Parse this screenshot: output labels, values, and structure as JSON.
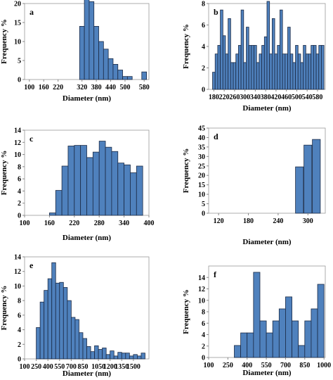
{
  "chart_data": [
    {
      "panel": "a",
      "type": "bar",
      "ylabel": "Frequency %",
      "xlabel": "Diameter (nm)",
      "ylim": [
        0,
        20
      ],
      "yticks": [
        "0",
        "5",
        "10",
        "15",
        "20"
      ],
      "xlim": [
        80,
        600
      ],
      "xticks": [
        "100",
        "160",
        "220",
        "320",
        "380",
        "440",
        "500",
        "580"
      ],
      "bar_width": 20,
      "centers": [
        320,
        340,
        360,
        380,
        400,
        420,
        440,
        460,
        480,
        500,
        520,
        580
      ],
      "values": [
        14,
        21,
        20.5,
        14,
        10,
        8,
        5.5,
        4,
        2.5,
        0.8,
        0.8,
        2
      ]
    },
    {
      "panel": "b",
      "type": "bar",
      "ylabel": "Frequency %",
      "xlabel": "Diameter (nm)",
      "ylim": [
        0,
        8
      ],
      "yticks": [
        "0",
        "2",
        "4",
        "6",
        "8"
      ],
      "xlim": [
        160,
        610
      ],
      "xticks": [
        "180",
        "220",
        "260",
        "300",
        "340",
        "380",
        "420",
        "460",
        "500",
        "540",
        "580"
      ],
      "bar_width": 10,
      "centers": [
        180,
        190,
        200,
        210,
        220,
        230,
        240,
        250,
        260,
        270,
        280,
        290,
        300,
        310,
        320,
        330,
        340,
        350,
        360,
        370,
        380,
        390,
        400,
        410,
        420,
        430,
        440,
        450,
        460,
        470,
        480,
        490,
        500,
        510,
        520,
        530,
        540,
        550,
        560,
        570,
        580,
        590,
        600
      ],
      "values": [
        1.6,
        3.3,
        4.1,
        7.4,
        5.0,
        3.3,
        6.6,
        2.5,
        2.5,
        3.3,
        4.1,
        7.4,
        2.5,
        5.8,
        4.1,
        4.1,
        4.1,
        2.5,
        3.3,
        4.1,
        4.9,
        8.2,
        3.3,
        6.6,
        3.3,
        4.1,
        7.4,
        3.3,
        3.3,
        5.8,
        3.3,
        2.5,
        4.1,
        3.3,
        2.5,
        4.1,
        3.3,
        3.3,
        4.1,
        4.1,
        3.3,
        4.1,
        4.1
      ]
    },
    {
      "panel": "c",
      "type": "bar",
      "ylabel": "Frequency %",
      "xlabel": "Diameter (nm)",
      "ylim": [
        0,
        14
      ],
      "yticks": [
        "0",
        "2",
        "4",
        "6",
        "8",
        "10",
        "12",
        "14"
      ],
      "xlim": [
        100,
        400
      ],
      "xticks": [
        "100",
        "160",
        "220",
        "280",
        "340",
        "400"
      ],
      "bar_width": 15,
      "centers": [
        167.5,
        182.5,
        197.5,
        212.5,
        227.5,
        242.5,
        257.5,
        272.5,
        287.5,
        302.5,
        317.5,
        332.5,
        347.5,
        362.5,
        377.5
      ],
      "values": [
        0.4,
        4.1,
        8.1,
        11.4,
        11.5,
        11.5,
        9.5,
        10.4,
        12.2,
        11.2,
        10.5,
        8.6,
        8.3,
        7.0,
        8.1
      ]
    },
    {
      "panel": "d",
      "type": "bar",
      "ylabel": "Frequency %",
      "xlabel": "Diameter (nm)",
      "ylim": [
        0,
        45
      ],
      "yticks": [
        "0",
        "5",
        "10",
        "15",
        "20",
        "25",
        "30",
        "35",
        "40",
        "45"
      ],
      "xlim": [
        100,
        335
      ],
      "xticks": [
        "120",
        "180",
        "240",
        "300"
      ],
      "bar_width": 16,
      "centers": [
        283,
        300,
        317
      ],
      "values": [
        24.5,
        36,
        39
      ]
    },
    {
      "panel": "e",
      "type": "bar",
      "ylabel": "Frequency %",
      "xlabel": "Diameter (nm)",
      "ylim": [
        0,
        14
      ],
      "yticks": [
        "0",
        "2",
        "4",
        "6",
        "8",
        "10",
        "12",
        "14"
      ],
      "xlim": [
        100,
        1700
      ],
      "xticks": [
        "100",
        "250",
        "400",
        "550",
        "700",
        "850",
        "1050",
        "1200",
        "1350",
        "1500"
      ],
      "bar_width": 50,
      "centers": [
        275,
        325,
        375,
        425,
        475,
        525,
        575,
        625,
        675,
        725,
        775,
        825,
        875,
        925,
        975,
        1025,
        1075,
        1125,
        1175,
        1225,
        1275,
        1325,
        1375,
        1425,
        1475,
        1525,
        1575,
        1625
      ],
      "values": [
        4.3,
        7.8,
        9.4,
        11.0,
        13.2,
        10.4,
        10.5,
        9.8,
        8.0,
        5.7,
        5.4,
        3.6,
        2.8,
        1.7,
        1.0,
        1.8,
        1.3,
        1.5,
        0.6,
        1.1,
        0.4,
        0.9,
        0.8,
        0.8,
        0.4,
        0.6,
        0.4,
        0.8
      ]
    },
    {
      "panel": "f",
      "type": "bar",
      "ylabel": "Frequency %",
      "xlabel": "Diameter (nm)",
      "ylim": [
        0,
        16
      ],
      "yticks": [
        "0",
        "2",
        "4",
        "6",
        "8",
        "10",
        "12",
        "14"
      ],
      "xlim": [
        100,
        1010
      ],
      "xticks": [
        "100",
        "250",
        "400",
        "550",
        "700",
        "850",
        "1000"
      ],
      "bar_width": 50,
      "centers": [
        325,
        375,
        425,
        475,
        525,
        575,
        625,
        675,
        725,
        775,
        825,
        875,
        925,
        975
      ],
      "values": [
        2.1,
        4.3,
        4.3,
        14.9,
        6.4,
        4.3,
        6.4,
        8.5,
        10.6,
        6.4,
        2.1,
        6.4,
        8.5,
        12.8
      ]
    }
  ]
}
